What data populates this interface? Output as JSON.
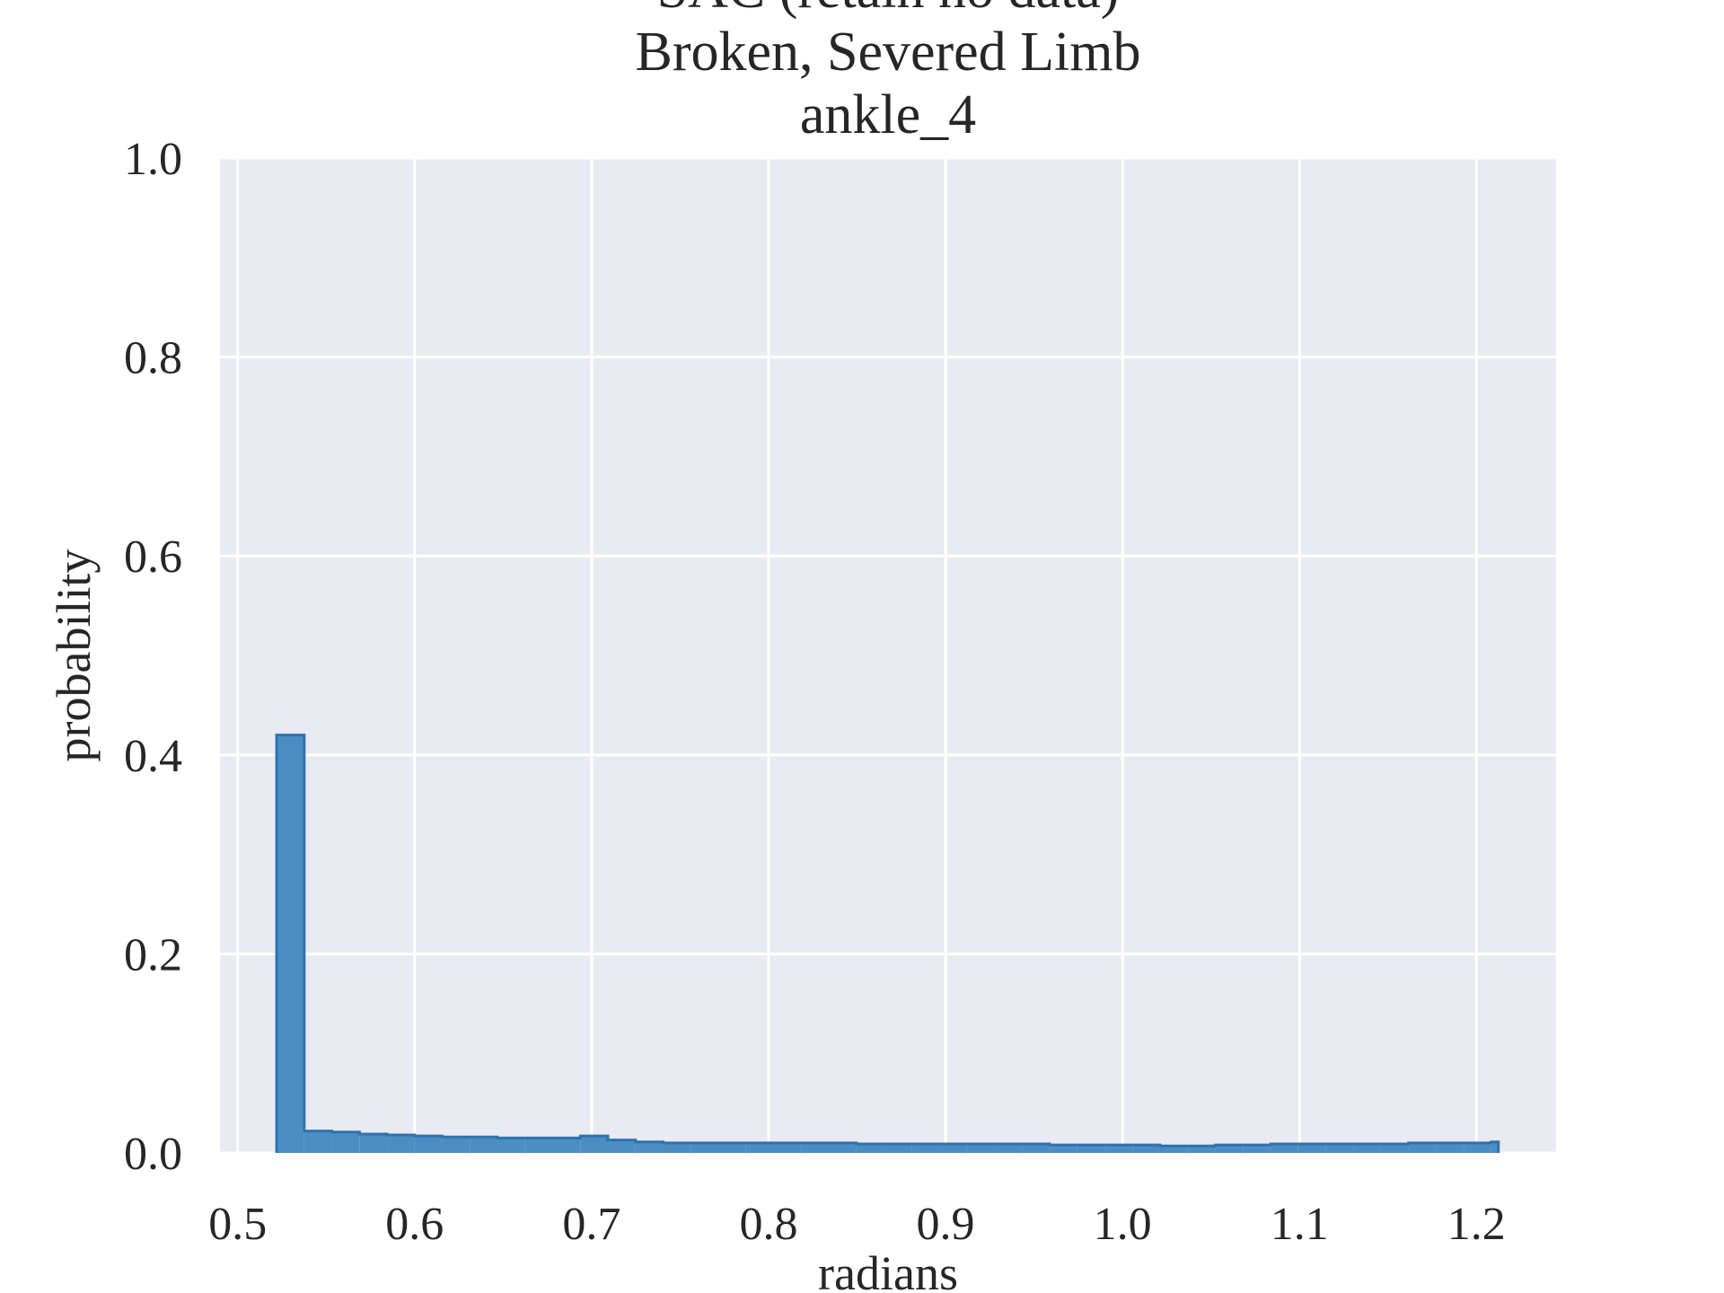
{
  "chart_data": {
    "type": "histogram",
    "title_lines": [
      "SAC (retain no data)",
      "Broken, Severed Limb",
      "ankle_4"
    ],
    "xlabel": "radians",
    "ylabel": "probability",
    "xlim": [
      0.49,
      1.245
    ],
    "ylim": [
      0.0,
      1.0
    ],
    "x_ticks": [
      0.5,
      0.6,
      0.7,
      0.8,
      0.9,
      1.0,
      1.1,
      1.2
    ],
    "x_tick_labels": [
      "0.5",
      "0.6",
      "0.7",
      "0.8",
      "0.9",
      "1.0",
      "1.1",
      "1.2"
    ],
    "y_ticks": [
      0.0,
      0.2,
      0.4,
      0.6,
      0.8,
      1.0
    ],
    "y_tick_labels": [
      "0.0",
      "0.2",
      "0.4",
      "0.6",
      "0.8",
      "1.0"
    ],
    "grid": true,
    "bin_edges": [
      0.522,
      0.5376,
      0.5532,
      0.5688,
      0.5844,
      0.6,
      0.6156,
      0.6312,
      0.6468,
      0.6624,
      0.678,
      0.6936,
      0.7092,
      0.7248,
      0.7404,
      0.756,
      0.7716,
      0.7872,
      0.8028,
      0.8184,
      0.834,
      0.8496,
      0.8652,
      0.8808,
      0.8964,
      0.912,
      0.9276,
      0.9432,
      0.9588,
      0.9744,
      0.99,
      1.0056,
      1.0212,
      1.0368,
      1.0524,
      1.068,
      1.0836,
      1.0992,
      1.1148,
      1.1304,
      1.146,
      1.1616,
      1.1772,
      1.1928,
      1.2084,
      1.2124
    ],
    "values": [
      0.42,
      0.022,
      0.021,
      0.019,
      0.018,
      0.017,
      0.016,
      0.016,
      0.015,
      0.015,
      0.015,
      0.017,
      0.013,
      0.011,
      0.01,
      0.01,
      0.01,
      0.01,
      0.01,
      0.01,
      0.01,
      0.009,
      0.009,
      0.009,
      0.009,
      0.009,
      0.009,
      0.009,
      0.008,
      0.008,
      0.008,
      0.008,
      0.007,
      0.007,
      0.008,
      0.008,
      0.009,
      0.009,
      0.009,
      0.009,
      0.009,
      0.01,
      0.01,
      0.01,
      0.011
    ],
    "colors": {
      "fill": "#4a8ec4",
      "edge": "#2f72ad",
      "plot_bg": "#eaeaf2",
      "grid": "#ffffff",
      "text": "#262626"
    }
  }
}
